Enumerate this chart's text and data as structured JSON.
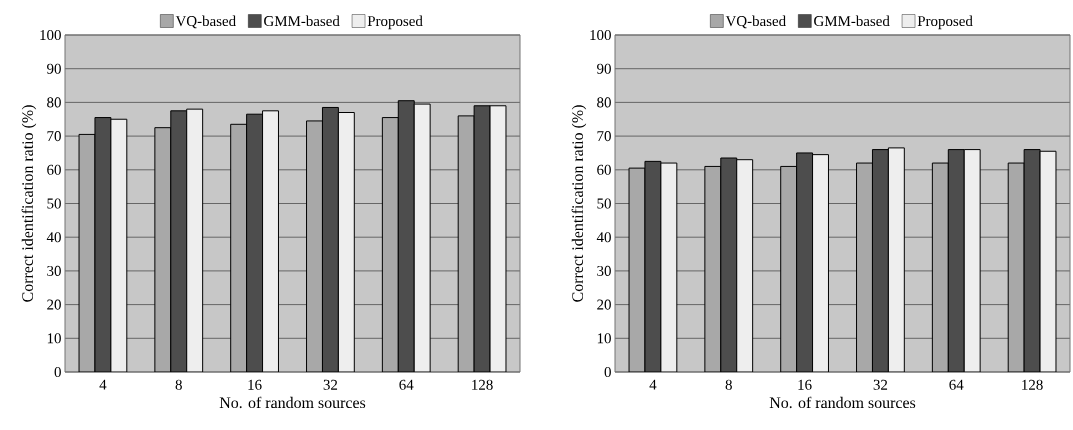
{
  "chart_data": [
    {
      "type": "bar",
      "xlabel": "No. of random sources",
      "ylabel": "Correct identification ratio (%)",
      "categories": [
        "4",
        "8",
        "16",
        "32",
        "64",
        "128"
      ],
      "ylim": [
        0,
        100
      ],
      "yticks": [
        0,
        10,
        20,
        30,
        40,
        50,
        60,
        70,
        80,
        90,
        100
      ],
      "grid": "y",
      "legend": "top",
      "series": [
        {
          "name": "VQ-based",
          "color": "#a8a8a8",
          "values": [
            70.5,
            72.5,
            73.5,
            74.5,
            75.5,
            76
          ]
        },
        {
          "name": "GMM-based",
          "color": "#4d4d4d",
          "values": [
            75.5,
            77.5,
            76.5,
            78.5,
            80.5,
            79
          ]
        },
        {
          "name": "Proposed",
          "color": "#eeeeee",
          "values": [
            75,
            78,
            77.5,
            77,
            79.5,
            79
          ]
        }
      ]
    },
    {
      "type": "bar",
      "xlabel": "No. of random sources",
      "ylabel": "Correct identification ratio (%)",
      "categories": [
        "4",
        "8",
        "16",
        "32",
        "64",
        "128"
      ],
      "ylim": [
        0,
        100
      ],
      "yticks": [
        0,
        10,
        20,
        30,
        40,
        50,
        60,
        70,
        80,
        90,
        100
      ],
      "grid": "y",
      "legend": "top",
      "series": [
        {
          "name": "VQ-based",
          "color": "#a8a8a8",
          "values": [
            60.5,
            61,
            61,
            62,
            62,
            62
          ]
        },
        {
          "name": "GMM-based",
          "color": "#4d4d4d",
          "values": [
            62.5,
            63.5,
            65,
            66,
            66,
            66
          ]
        },
        {
          "name": "Proposed",
          "color": "#eeeeee",
          "values": [
            62,
            63,
            64.5,
            66.5,
            66,
            65.5
          ]
        }
      ]
    }
  ]
}
